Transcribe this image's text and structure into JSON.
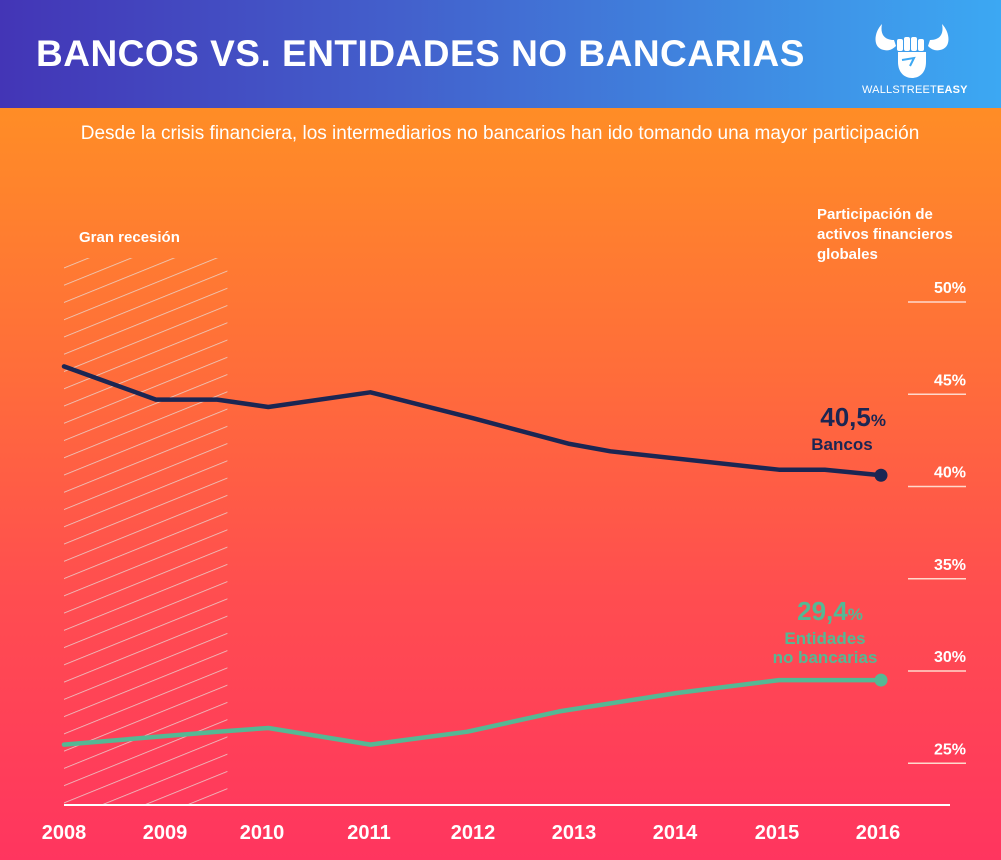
{
  "header": {
    "title": "BANCOS VS. ENTIDADES NO BANCARIAS",
    "logo_text_light": "WALLSTREET",
    "logo_text_bold": "EASY",
    "logo_icon": "bull-horns-fist-icon"
  },
  "colors": {
    "bancos": "#1b2653",
    "entidades": "#55b894",
    "header_start": "#4335b6",
    "header_end": "#3ca8f3",
    "bg_top": "#ff8d26",
    "bg_bottom": "#ff355f"
  },
  "chart_data": {
    "type": "line",
    "title": "BANCOS VS. ENTIDADES NO BANCARIAS",
    "subtitle": "Desde la crisis financiera, los intermediarios no bancarios han ido tomando una mayor participación",
    "ylabel": "Participación de activos financieros globales",
    "xlabel": "",
    "x_ticks": [
      "2008",
      "2009",
      "2010",
      "2011",
      "2012",
      "2013",
      "2014",
      "2015",
      "2016"
    ],
    "y_ticks": [
      "50%",
      "45%",
      "40%",
      "35%",
      "30%",
      "25%"
    ],
    "y_tick_values": [
      50,
      45,
      40,
      35,
      30,
      25
    ],
    "ylim": [
      22.8,
      50
    ],
    "xlim": [
      2008,
      2016
    ],
    "grid": false,
    "shaded_region": {
      "label": "Gran recesión",
      "x_start": 2008,
      "x_end": 2009.6
    },
    "series": [
      {
        "name": "Bancos",
        "end_label_value": "40,5",
        "end_label_unit": "%",
        "x": [
          2008,
          2008.9,
          2009.5,
          2010,
          2011,
          2012,
          2012.95,
          2013.35,
          2015.0,
          2015.45,
          2016
        ],
        "values": [
          46.4,
          44.6,
          44.6,
          44.2,
          45.0,
          43.6,
          42.2,
          41.8,
          40.8,
          40.8,
          40.5
        ]
      },
      {
        "name": "Entidades no bancarias",
        "name_lines": [
          "Entidades",
          "no bancarias"
        ],
        "end_label_value": "29,4",
        "end_label_unit": "%",
        "x": [
          2008,
          2009.5,
          2010,
          2011,
          2011.95,
          2012.85,
          2014.0,
          2015.0,
          2016
        ],
        "values": [
          25.9,
          26.6,
          26.8,
          25.9,
          26.6,
          27.7,
          28.7,
          29.4,
          29.4
        ]
      }
    ]
  }
}
